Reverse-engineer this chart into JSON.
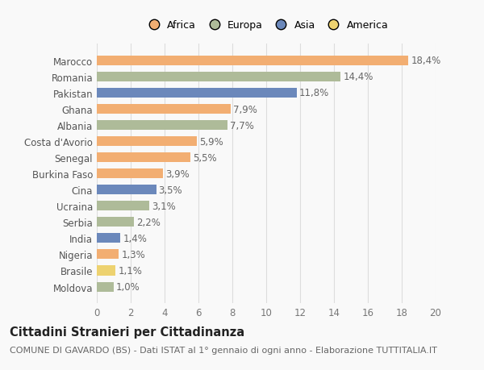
{
  "countries": [
    "Marocco",
    "Romania",
    "Pakistan",
    "Ghana",
    "Albania",
    "Costa d'Avorio",
    "Senegal",
    "Burkina Faso",
    "Cina",
    "Ucraina",
    "Serbia",
    "India",
    "Nigeria",
    "Brasile",
    "Moldova"
  ],
  "values": [
    18.4,
    14.4,
    11.8,
    7.9,
    7.7,
    5.9,
    5.5,
    3.9,
    3.5,
    3.1,
    2.2,
    1.4,
    1.3,
    1.1,
    1.0
  ],
  "labels": [
    "18,4%",
    "14,4%",
    "11,8%",
    "7,9%",
    "7,7%",
    "5,9%",
    "5,5%",
    "3,9%",
    "3,5%",
    "3,1%",
    "2,2%",
    "1,4%",
    "1,3%",
    "1,1%",
    "1,0%"
  ],
  "continents": [
    "Africa",
    "Europa",
    "Asia",
    "Africa",
    "Europa",
    "Africa",
    "Africa",
    "Africa",
    "Asia",
    "Europa",
    "Europa",
    "Asia",
    "Africa",
    "America",
    "Europa"
  ],
  "colors": {
    "Africa": "#F2AE72",
    "Europa": "#AEBB99",
    "Asia": "#6B88BB",
    "America": "#EDD270"
  },
  "xlim": [
    0,
    20
  ],
  "xticks": [
    0,
    2,
    4,
    6,
    8,
    10,
    12,
    14,
    16,
    18,
    20
  ],
  "title": "Cittadini Stranieri per Cittadinanza",
  "subtitle": "COMUNE DI GAVARDO (BS) - Dati ISTAT al 1° gennaio di ogni anno - Elaborazione TUTTITALIA.IT",
  "bg_color": "#f9f9f9",
  "grid_color": "#dddddd",
  "bar_height": 0.6,
  "label_fontsize": 8.5,
  "tick_fontsize": 8.5,
  "title_fontsize": 10.5,
  "subtitle_fontsize": 8.0,
  "legend_order": [
    "Africa",
    "Europa",
    "Asia",
    "America"
  ]
}
